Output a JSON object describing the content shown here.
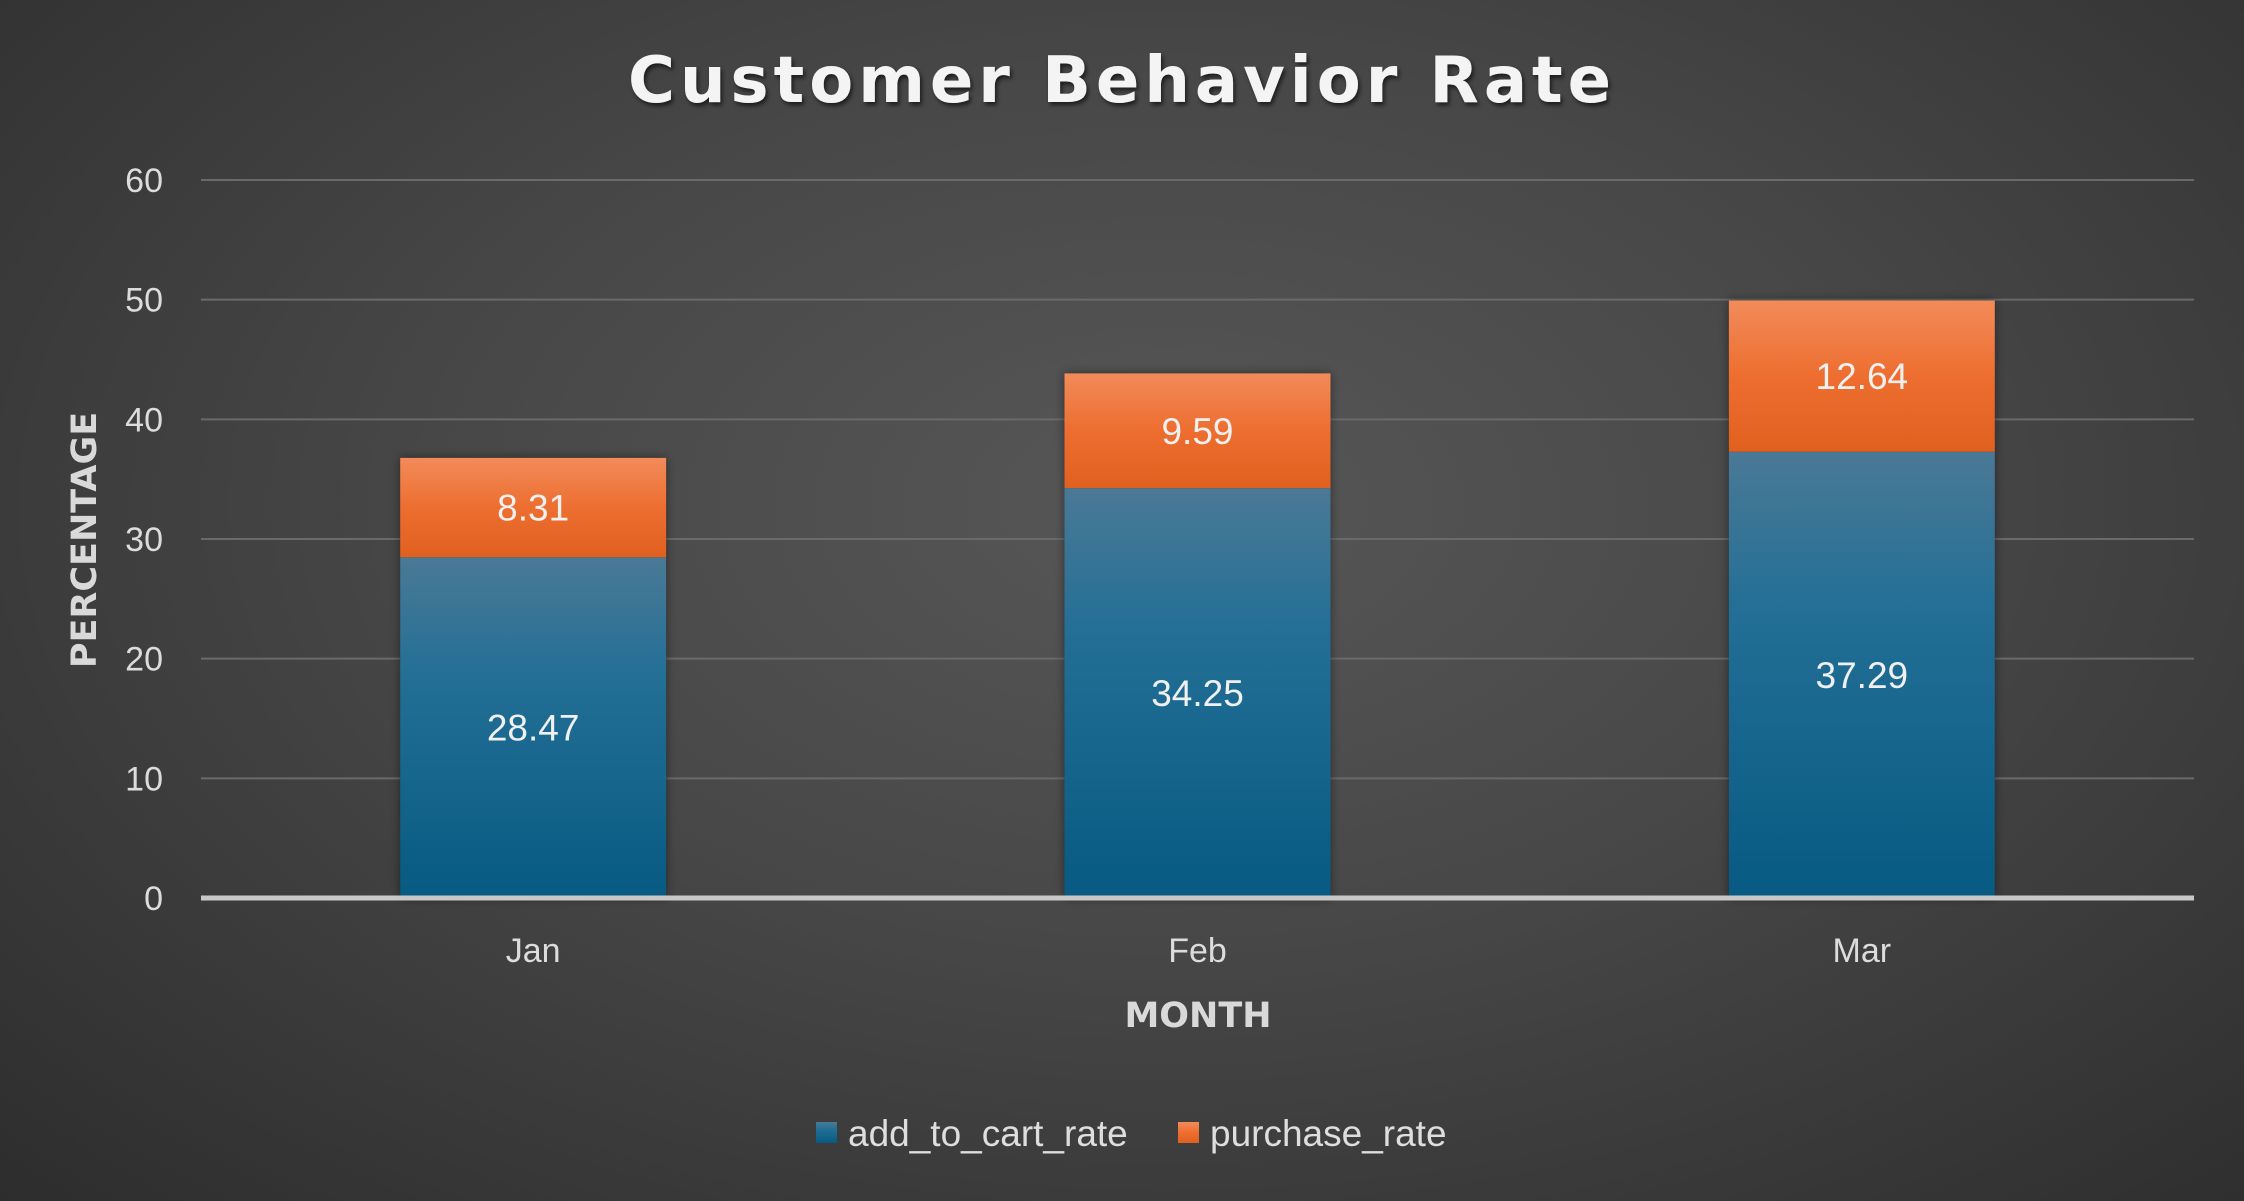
{
  "chart_data": {
    "type": "bar",
    "stacked": true,
    "title": "Customer Behavior Rate",
    "xlabel": "MONTH",
    "ylabel": "PERCENTAGE",
    "categories": [
      "Jan",
      "Feb",
      "Mar"
    ],
    "series": [
      {
        "name": "add_to_cart_rate",
        "values": [
          28.47,
          34.25,
          37.29
        ],
        "color": "#1f6a91"
      },
      {
        "name": "purchase_rate",
        "values": [
          8.31,
          9.59,
          12.64
        ],
        "color": "#e8652a"
      }
    ],
    "ylim": [
      0,
      60
    ],
    "yticks": [
      0,
      10,
      20,
      30,
      40,
      50,
      60
    ],
    "grid": true,
    "legend": "bottom",
    "data_labels": true
  }
}
